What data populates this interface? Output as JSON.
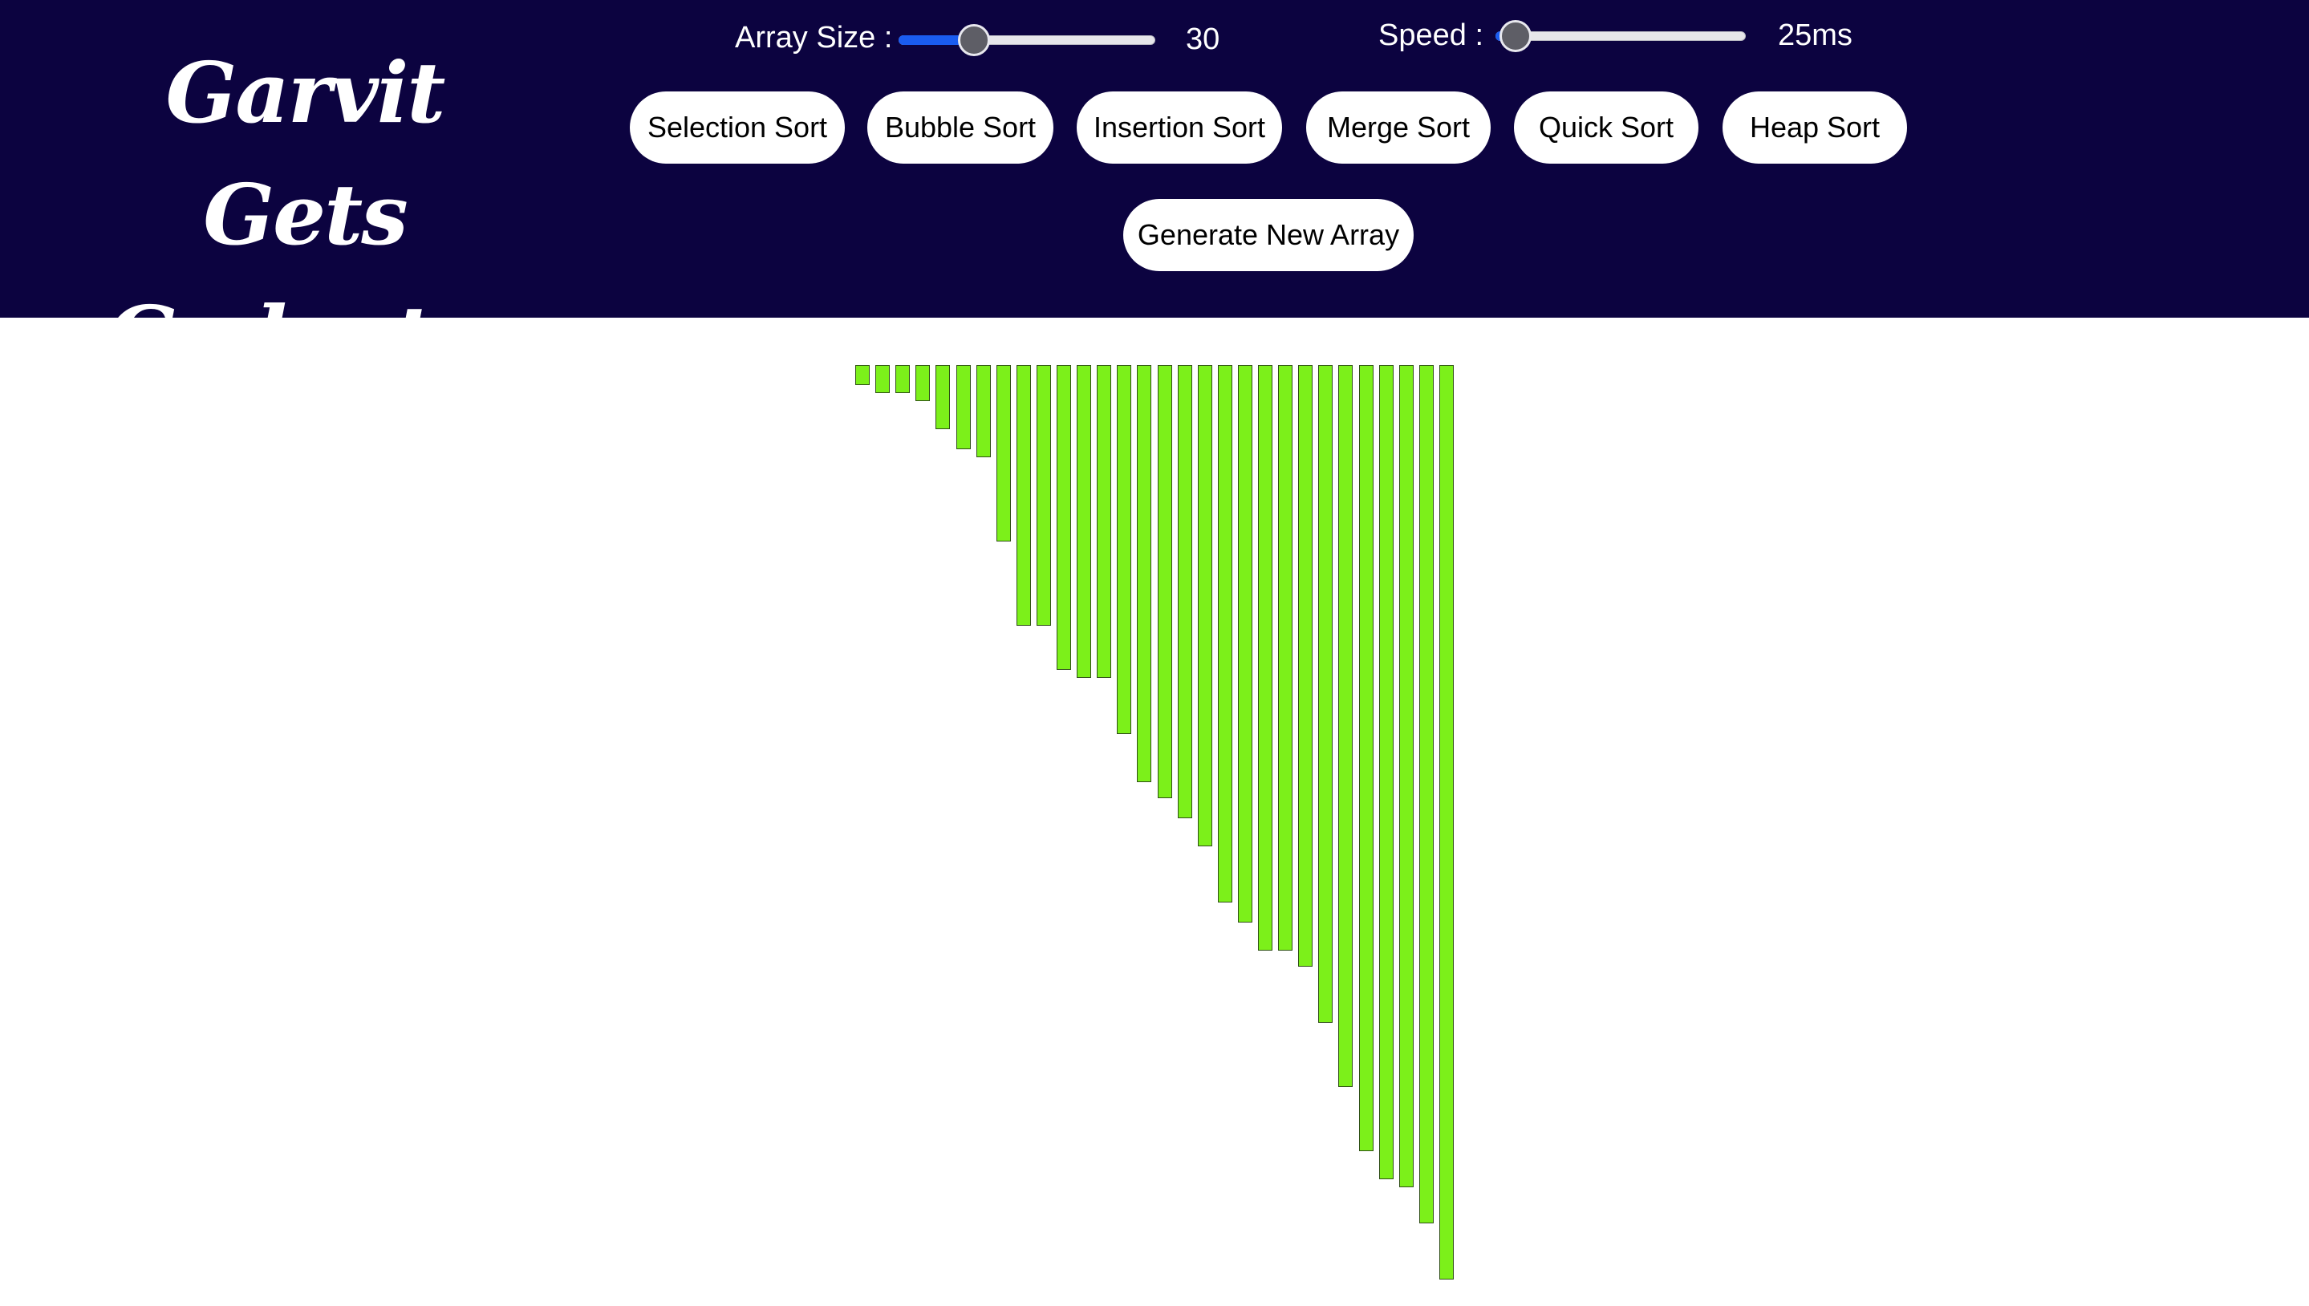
{
  "header": {
    "logo_line1": "Garvit Gets",
    "logo_line2": "Gadgets.",
    "background_color": "#0c0340"
  },
  "controls": {
    "array_size": {
      "label": "Array Size :",
      "value": "30",
      "min": 5,
      "max": 100,
      "current": 30
    },
    "speed": {
      "label": "Speed :",
      "value": "25ms",
      "min": 20,
      "max": 300,
      "current": 25
    },
    "slider_fill_color": "#1a5cf0"
  },
  "buttons": {
    "selection_sort": "Selection Sort",
    "bubble_sort": "Bubble Sort",
    "insertion_sort": "Insertion Sort",
    "merge_sort": "Merge Sort",
    "quick_sort": "Quick Sort",
    "heap_sort": "Heap Sort",
    "generate_new_array": "Generate New Array"
  },
  "chart_data": {
    "type": "bar",
    "bar_color": "#7cf01a",
    "values": [
      5,
      7,
      7,
      9,
      16,
      21,
      23,
      44,
      65,
      65,
      76,
      78,
      78,
      92,
      104,
      108,
      113,
      120,
      134,
      139,
      146,
      146,
      150,
      164,
      180,
      196,
      203,
      205,
      214,
      228
    ]
  }
}
